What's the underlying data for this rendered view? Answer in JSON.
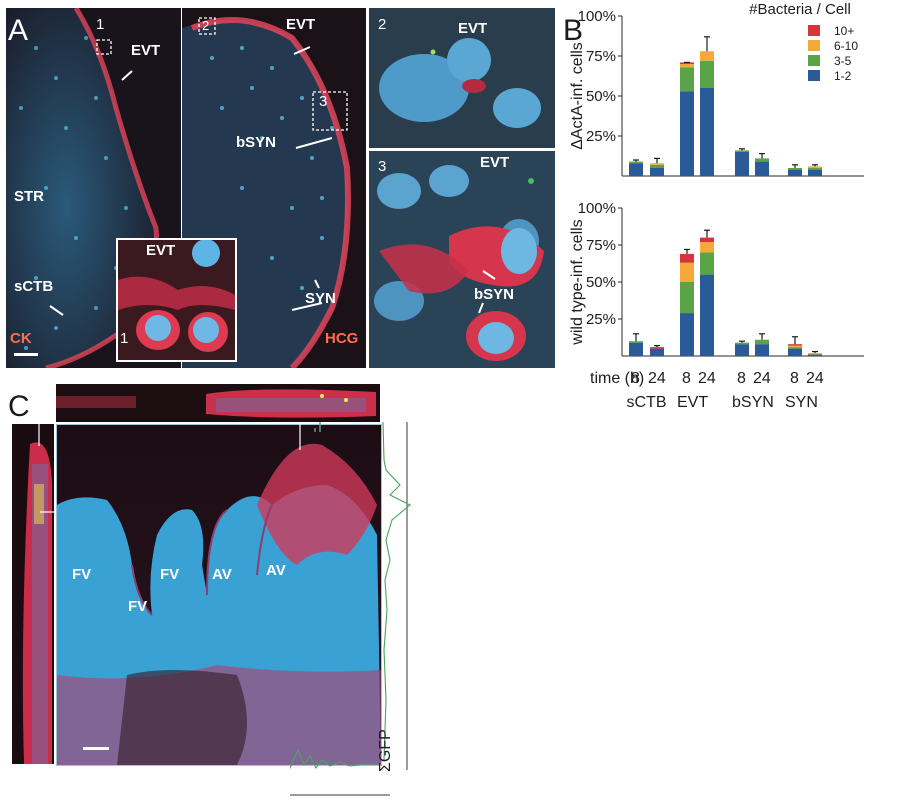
{
  "panelA": {
    "letter": "A",
    "labels": {
      "evt_left": "EVT",
      "str": "STR",
      "sctb": "sCTB",
      "ck": "CK",
      "evt_mid": "EVT",
      "bsyn_mid": "bSYN",
      "syn": "SYN",
      "hcg": "HCG",
      "inset1_evt": "EVT",
      "inset2_evt": "EVT",
      "inset3_evt": "EVT",
      "inset3_bsyn": "bSYN"
    },
    "box_numbers": {
      "b1": "1",
      "b2": "2",
      "b3": "3"
    },
    "inset_numbers": {
      "i1": "1",
      "i2": "2",
      "i3": "3"
    }
  },
  "panelB": {
    "letter": "B",
    "legend_title": "#Bacteria / Cell",
    "time_label": "time (h)",
    "group_labels": [
      "sCTB",
      "EVT",
      "bSYN",
      "SYN"
    ],
    "time_points": [
      "8",
      "24"
    ]
  },
  "chart_data": [
    {
      "type": "bar",
      "stacked": true,
      "ylabel": "ΔActA-inf. cells",
      "yticks": [
        "25%",
        "50%",
        "75%",
        "100%"
      ],
      "ylim": [
        0,
        100
      ],
      "categories": [
        "sCTB 8",
        "sCTB 24",
        "EVT 8",
        "EVT 24",
        "bSYN 8",
        "bSYN 24",
        "SYN 8",
        "SYN 24"
      ],
      "series": [
        {
          "name": "1-2",
          "color": "#2b5a98",
          "values": [
            8,
            5,
            53,
            55,
            15,
            9,
            4,
            4
          ]
        },
        {
          "name": "3-5",
          "color": "#5aa447",
          "values": [
            1,
            2,
            15,
            17,
            1,
            2,
            1,
            1
          ]
        },
        {
          "name": "6-10",
          "color": "#f4a93a",
          "values": [
            0,
            1,
            2,
            6,
            0,
            0,
            0,
            1
          ]
        },
        {
          "name": "10+",
          "color": "#d8353b",
          "values": [
            0,
            0,
            1,
            0,
            0,
            0,
            0,
            0
          ]
        }
      ],
      "error_tops": [
        10,
        11,
        71,
        87,
        17,
        14,
        7,
        7
      ]
    },
    {
      "type": "bar",
      "stacked": true,
      "ylabel": "wild type-inf. cells",
      "yticks": [
        "25%",
        "50%",
        "75%",
        "100%"
      ],
      "ylim": [
        0,
        100
      ],
      "categories": [
        "sCTB 8",
        "sCTB 24",
        "EVT 8",
        "EVT 24",
        "bSYN 8",
        "bSYN 24",
        "SYN 8",
        "SYN 24"
      ],
      "series": [
        {
          "name": "1-2",
          "color": "#2b5a98",
          "values": [
            9,
            5,
            29,
            55,
            8,
            8,
            5,
            1
          ]
        },
        {
          "name": "3-5",
          "color": "#5aa447",
          "values": [
            1,
            0,
            21,
            15,
            1,
            3,
            1,
            0
          ]
        },
        {
          "name": "6-10",
          "color": "#f4a93a",
          "values": [
            0,
            0,
            13,
            7,
            0,
            0,
            1,
            1
          ]
        },
        {
          "name": "10+",
          "color": "#d8353b",
          "values": [
            0,
            1,
            6,
            3,
            0,
            0,
            1,
            0
          ]
        }
      ],
      "error_tops": [
        15,
        7,
        72,
        85,
        10,
        15,
        13,
        3
      ]
    }
  ],
  "panelC": {
    "letter": "C",
    "labels": [
      "FV",
      "FV",
      "FV",
      "AV",
      "AV"
    ],
    "gfp_label": "ΣGFP"
  },
  "colors": {
    "tissue_blue": "#3fa9da",
    "stain_red": "#e83d5a",
    "dark_bg": "#190b10",
    "gfp_green": "#3aa34a"
  }
}
